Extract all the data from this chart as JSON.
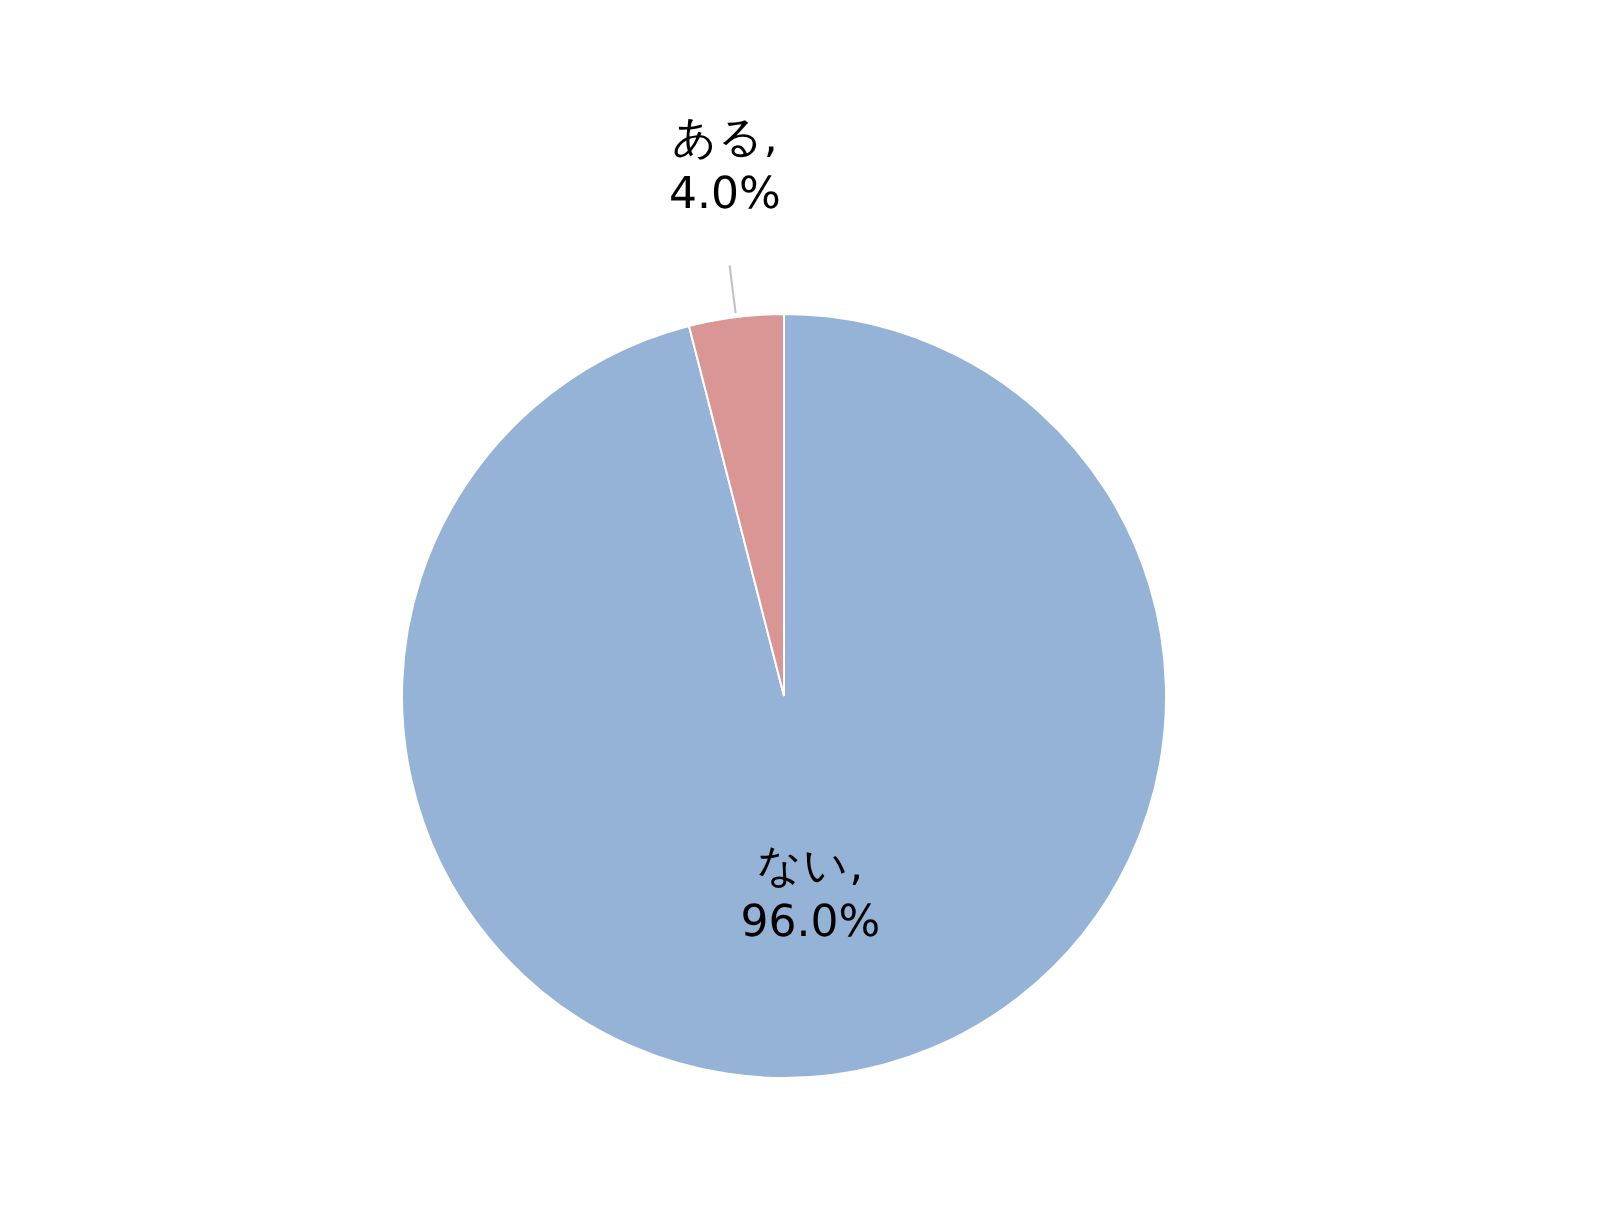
{
  "chart_data": {
    "type": "pie",
    "categories": [
      "ない",
      "ある"
    ],
    "values": [
      96,
      4
    ],
    "colors": [
      "#95b3d7",
      "#d99694"
    ],
    "value_labels": [
      ", 96.0%",
      ", 4.0%"
    ]
  }
}
